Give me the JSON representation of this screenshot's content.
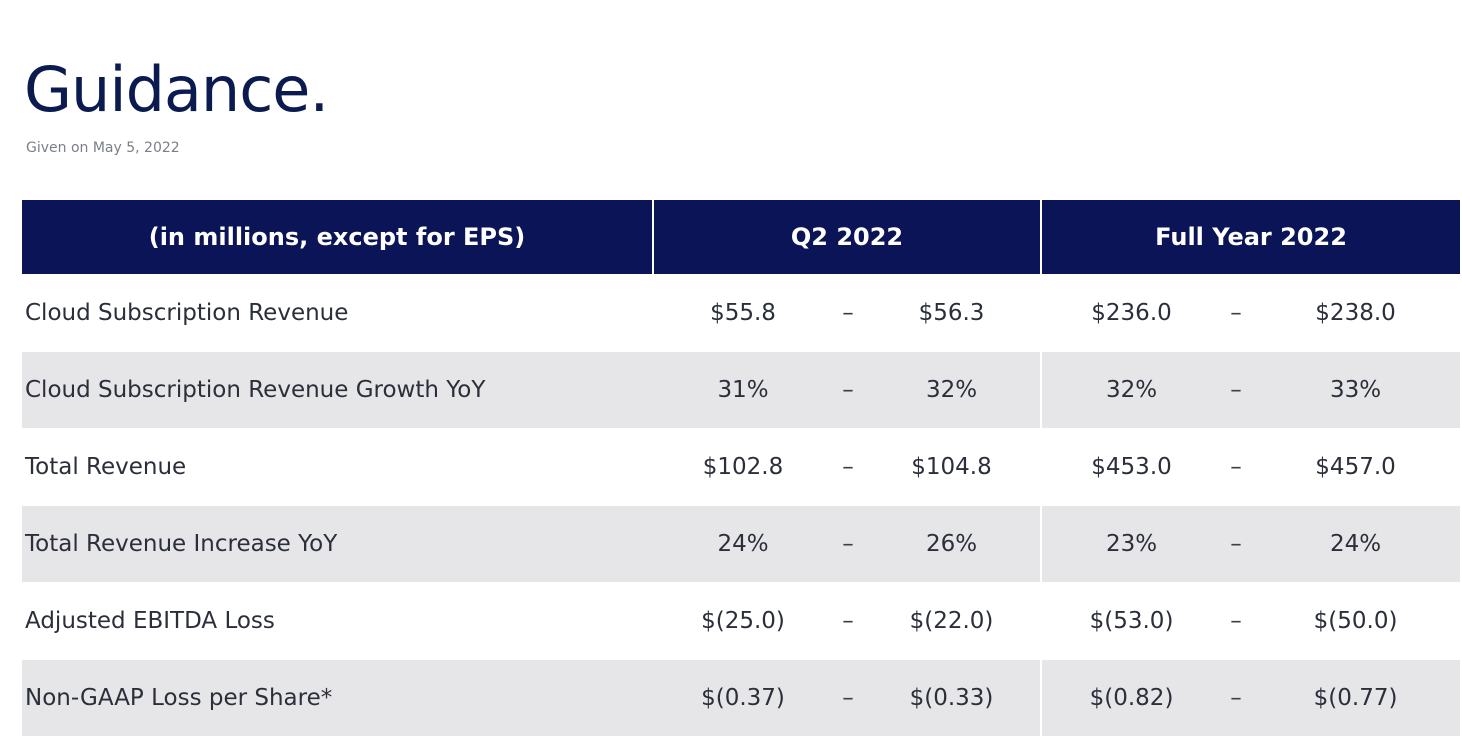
{
  "title": "Guidance.",
  "subtitle": "Given on May 5, 2022",
  "table": {
    "headers": [
      "(in millions, except for EPS)",
      "Q2 2022",
      "Full Year 2022"
    ],
    "dash": "–",
    "rows": [
      {
        "label": "Cloud Subscription Revenue",
        "q2_low": "$55.8",
        "q2_high": "$56.3",
        "fy_low": "$236.0",
        "fy_high": "$238.0"
      },
      {
        "label": "Cloud Subscription Revenue Growth YoY",
        "q2_low": "31%",
        "q2_high": "32%",
        "fy_low": "32%",
        "fy_high": "33%"
      },
      {
        "label": "Total Revenue",
        "q2_low": "$102.8",
        "q2_high": "$104.8",
        "fy_low": "$453.0",
        "fy_high": "$457.0"
      },
      {
        "label": "Total Revenue Increase YoY",
        "q2_low": "24%",
        "q2_high": "26%",
        "fy_low": "23%",
        "fy_high": "24%"
      },
      {
        "label": "Adjusted EBITDA Loss",
        "q2_low": "$(25.0)",
        "q2_high": "$(22.0)",
        "fy_low": "$(53.0)",
        "fy_high": "$(50.0)"
      },
      {
        "label": "Non-GAAP Loss per Share*",
        "q2_low": "$(0.37)",
        "q2_high": "$(0.33)",
        "fy_low": "$(0.82)",
        "fy_high": "$(0.77)"
      }
    ]
  }
}
